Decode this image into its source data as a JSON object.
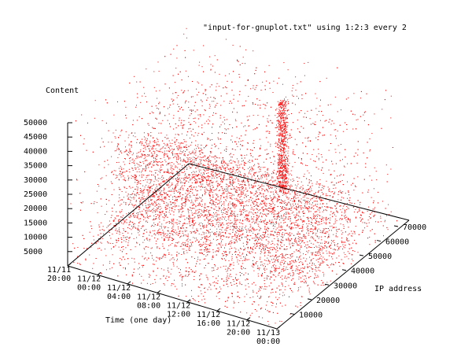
{
  "chart_data": {
    "type": "scatter",
    "title": "\"input-for-gnuplot.txt\" using 1:2:3 every 2",
    "xlabel": "Time (one day)",
    "ylabel": "IP address",
    "zlabel": "Content",
    "x_ticks": [
      "11/11 20:00",
      "11/12 00:00",
      "11/12 04:00",
      "11/12 08:00",
      "11/12 12:00",
      "11/12 16:00",
      "11/12 20:00",
      "11/13 00:00"
    ],
    "y_ticks": [
      10000,
      20000,
      30000,
      40000,
      50000,
      60000,
      70000
    ],
    "z_ticks": [
      5000,
      10000,
      15000,
      20000,
      25000,
      30000,
      35000,
      40000,
      45000,
      50000
    ],
    "ylim": [
      0,
      70000
    ],
    "zlim": [
      0,
      50000
    ],
    "point_color": "#ff0000",
    "axis_color": "#000000",
    "notes": [
      "dense scatter of points filling time x IP x content volume",
      "tall dense column near IP 25000-30000 rising to about 35000",
      "secondary dense band near IP 40000-45000 up to about 25000"
    ]
  }
}
